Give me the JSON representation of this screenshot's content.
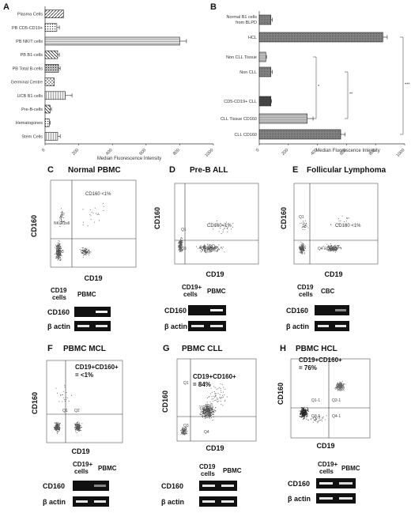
{
  "chart_data": [
    {
      "panel": "A",
      "type": "bar",
      "orientation": "horizontal",
      "categories": [
        "Plasma Cells",
        "PB CD5-CD19+",
        "PB NK/T cells",
        "PB B1-cells",
        "PB Total B-cells",
        "Germinal Centre",
        "UCB B1 cells",
        "Pre-B-cells",
        "Hematogones",
        "Stem Cells"
      ],
      "values": [
        110,
        70,
        800,
        75,
        80,
        55,
        120,
        30,
        25,
        75
      ],
      "errors": [
        0,
        15,
        40,
        10,
        10,
        0,
        40,
        8,
        5,
        15
      ],
      "xlabel": "Median Fluorescence Intensity",
      "xlim": [
        0,
        1000
      ],
      "xticks": [
        "0",
        "200",
        "400",
        "600",
        "800",
        "1000"
      ]
    },
    {
      "panel": "B",
      "type": "bar",
      "orientation": "horizontal",
      "categories": [
        "Normal B1 cells from BLPD",
        "HCL",
        "Non CLL Tissue",
        "Non CLL",
        "CD5-CD19+ CLL",
        "CLL Tissue CD160",
        "CLL CD160"
      ],
      "values": [
        80,
        850,
        45,
        80,
        80,
        330,
        560
      ],
      "errors": [
        10,
        30,
        5,
        10,
        5,
        40,
        30
      ],
      "xlabel": "Median Fluorescence Intensity",
      "xlim": [
        0,
        1000
      ],
      "xticks": [
        "0",
        "200",
        "400",
        "600",
        "800",
        "1000"
      ],
      "significance": [
        "*",
        "**",
        "***"
      ]
    }
  ],
  "panels": {
    "A": {
      "label": "A"
    },
    "B": {
      "label": "B"
    },
    "C": {
      "label": "C",
      "title": "Normal PBMC",
      "ylabel": "CD160",
      "xlabel": "CD19",
      "q_nk": "NK/T cell",
      "q_annot": "CD160 <1%",
      "q3": "Q3",
      "q4": "Q4",
      "gel_col1a": "CD19",
      "gel_col1b": "cells",
      "gel_col2": "PBMC",
      "gel_row1": "CD160",
      "gel_row2": "β actin"
    },
    "D": {
      "label": "D",
      "title": "Pre-B ALL",
      "ylabel": "CD160",
      "xlabel": "CD19",
      "q1": "Q1",
      "q_annot": "CD160<1%",
      "q3": "Q3",
      "q4": "Q4",
      "gel_col1a": "CD19+",
      "gel_col1b": "cells",
      "gel_col2": "PBMC",
      "gel_row1": "CD160",
      "gel_row2": "β actin"
    },
    "E": {
      "label": "E",
      "title": "Follicular Lymphoma",
      "ylabel": "CD160",
      "xlabel": "CD19",
      "q1": "Q1",
      "q_annot": "CD160 <1%",
      "q3": "Q3",
      "q4": "Q4",
      "gel_col1a": "CD19",
      "gel_col1b": "cells",
      "gel_col2": "CBC",
      "gel_row1": "CD160",
      "gel_row2": "β actin"
    },
    "F": {
      "label": "F",
      "title": "PBMC MCL",
      "ylabel": "CD160",
      "xlabel": "CD19",
      "annot1": "CD19+CD160+",
      "annot2": "= <1%",
      "q1": "Q1",
      "q2": "Q2",
      "gel_col1a": "CD19+",
      "gel_col1b": "cells",
      "gel_col2": "PBMC",
      "gel_row1": "CD160",
      "gel_row2": "β actin"
    },
    "G": {
      "label": "G",
      "title": "PBMC CLL",
      "ylabel": "CD160",
      "xlabel": "CD19",
      "annot1": "CD19+CD160+",
      "annot2": "= 84%",
      "q1": "Q1",
      "q2": "Q2",
      "q3": "Q3",
      "q4": "Q4",
      "gel_col1a": "CD19",
      "gel_col1b": "cells",
      "gel_col2": "PBMC",
      "gel_row1": "CD160",
      "gel_row2": "β actin"
    },
    "H": {
      "label": "H",
      "title": "PBMC HCL",
      "ylabel": "CD160",
      "xlabel": "CD19",
      "annot1": "CD19+CD160+",
      "annot2": "= 76%",
      "q1": "Q1-1",
      "q2": "Q2-1",
      "q3": "Q3-1",
      "q4": "Q4-1",
      "gel_col1a": "CD19+",
      "gel_col1b": "cells",
      "gel_col2": "PBMC",
      "gel_row1": "CD160",
      "gel_row2": "β actin"
    }
  }
}
